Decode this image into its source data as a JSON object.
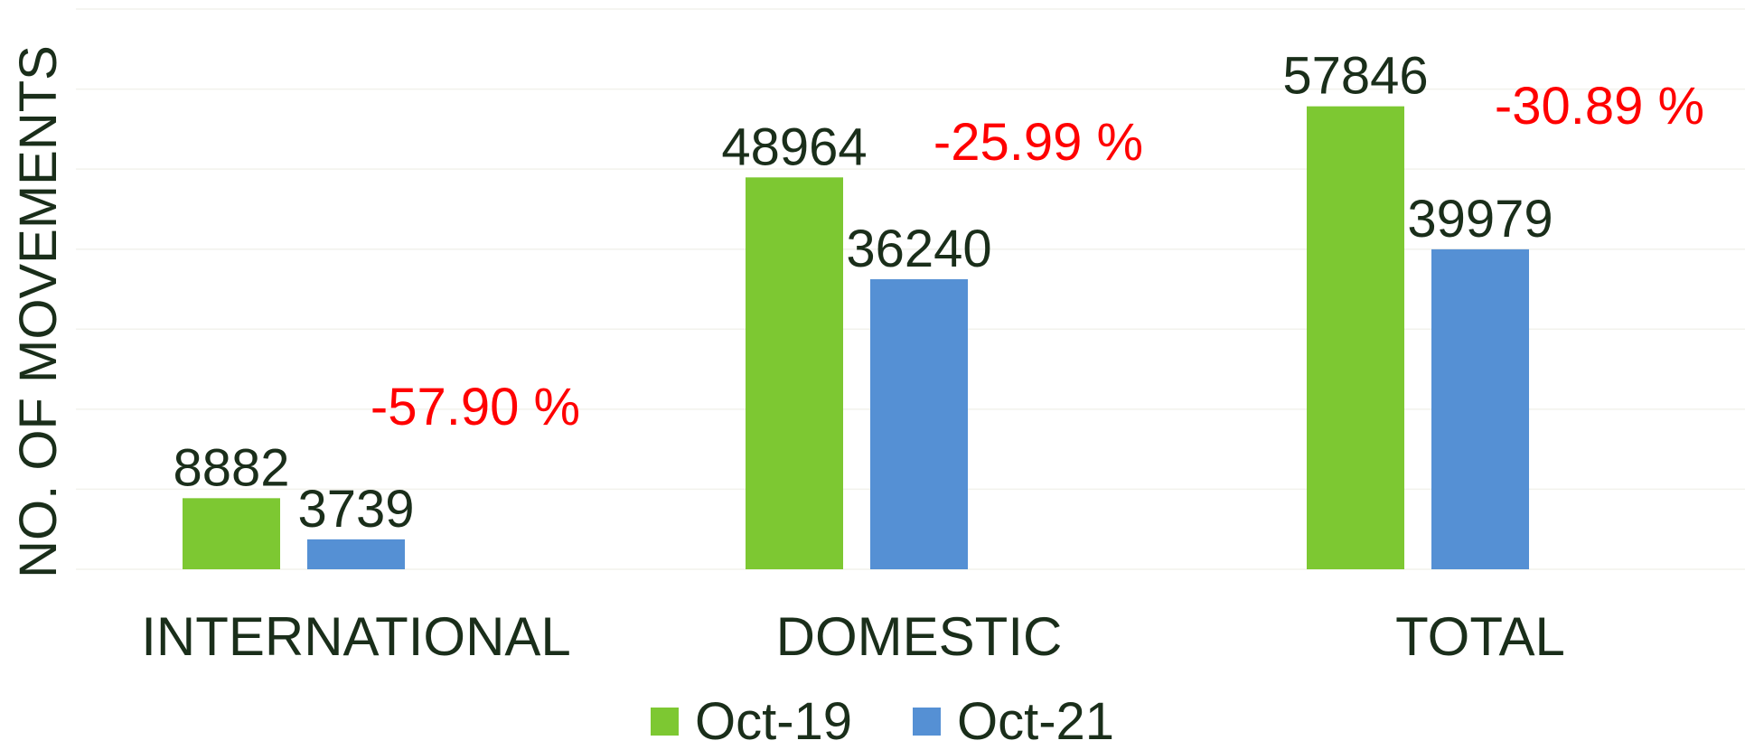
{
  "chart_data": {
    "type": "bar",
    "ylabel": "NO. OF MOVEMENTS",
    "categories": [
      "INTERNATIONAL",
      "DOMESTIC",
      "TOTAL"
    ],
    "series": [
      {
        "name": "Oct-19",
        "color": "#7dc832",
        "values": [
          8882,
          48964,
          57846
        ]
      },
      {
        "name": "Oct-21",
        "color": "#5590d4",
        "values": [
          3739,
          36240,
          39979
        ]
      }
    ],
    "annotations": [
      "-57.90 %",
      "-25.99 %",
      "-30.89 %"
    ],
    "annotation_color": "#ff0000",
    "ylim": [
      0,
      70000
    ],
    "yticks": [
      0,
      10000,
      20000,
      30000,
      40000,
      50000,
      60000,
      70000
    ],
    "grid": true,
    "legend": "bottom"
  }
}
